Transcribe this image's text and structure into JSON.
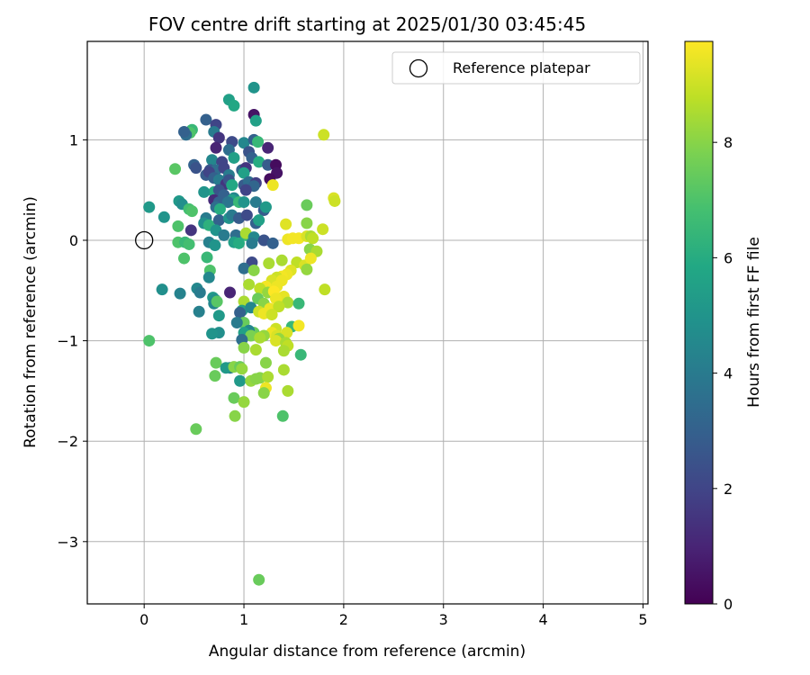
{
  "chart_data": {
    "type": "scatter",
    "title": "FOV centre drift starting at 2025/01/30 03:45:45",
    "xlabel": "Angular distance from reference (arcmin)",
    "ylabel": "Rotation from reference (arcmin)",
    "xlim": [
      -0.57,
      5.05
    ],
    "ylim": [
      -3.62,
      1.98
    ],
    "xticks": [
      0,
      1,
      2,
      3,
      4,
      5
    ],
    "yticks": [
      -3,
      -2,
      -1,
      0,
      1
    ],
    "grid": true,
    "legend": {
      "placement": "top-right",
      "entries": [
        "Reference platepar"
      ]
    },
    "colorbar": {
      "label": "Hours from first FF file",
      "min": 0,
      "max": 9.75,
      "ticks": [
        0,
        2,
        4,
        6,
        8
      ],
      "colormap": "viridis"
    },
    "reference_point": {
      "x": 0.0,
      "y": 0.0,
      "label": "Reference platepar"
    },
    "points": [
      {
        "x": 1.1,
        "y": 1.52,
        "t": 5.0
      },
      {
        "x": 0.85,
        "y": 1.4,
        "t": 5.5
      },
      {
        "x": 0.9,
        "y": 1.34,
        "t": 5.8
      },
      {
        "x": 1.1,
        "y": 1.25,
        "t": 0.5
      },
      {
        "x": 1.12,
        "y": 1.19,
        "t": 5.5
      },
      {
        "x": 0.62,
        "y": 1.2,
        "t": 3.0
      },
      {
        "x": 0.72,
        "y": 1.15,
        "t": 2.0
      },
      {
        "x": 0.48,
        "y": 1.1,
        "t": 6.5
      },
      {
        "x": 0.46,
        "y": 1.07,
        "t": 7.0
      },
      {
        "x": 0.42,
        "y": 1.05,
        "t": 3.5
      },
      {
        "x": 0.4,
        "y": 1.08,
        "t": 3.0
      },
      {
        "x": 0.7,
        "y": 1.08,
        "t": 4.0
      },
      {
        "x": 0.75,
        "y": 1.02,
        "t": 1.5
      },
      {
        "x": 0.88,
        "y": 0.98,
        "t": 2.2
      },
      {
        "x": 1.0,
        "y": 0.97,
        "t": 4.5
      },
      {
        "x": 1.1,
        "y": 1.0,
        "t": 3.0
      },
      {
        "x": 1.14,
        "y": 0.98,
        "t": 6.5
      },
      {
        "x": 1.24,
        "y": 0.92,
        "t": 1.0
      },
      {
        "x": 1.8,
        "y": 1.05,
        "t": 9.0
      },
      {
        "x": 0.72,
        "y": 0.92,
        "t": 1.0
      },
      {
        "x": 0.85,
        "y": 0.9,
        "t": 3.5
      },
      {
        "x": 1.05,
        "y": 0.88,
        "t": 2.5
      },
      {
        "x": 1.08,
        "y": 0.82,
        "t": 3.0
      },
      {
        "x": 0.9,
        "y": 0.82,
        "t": 5.5
      },
      {
        "x": 0.68,
        "y": 0.8,
        "t": 4.5
      },
      {
        "x": 0.78,
        "y": 0.78,
        "t": 2.0
      },
      {
        "x": 1.15,
        "y": 0.78,
        "t": 6.0
      },
      {
        "x": 1.24,
        "y": 0.75,
        "t": 2.8
      },
      {
        "x": 1.32,
        "y": 0.75,
        "t": 0.3
      },
      {
        "x": 0.5,
        "y": 0.75,
        "t": 3.0
      },
      {
        "x": 0.52,
        "y": 0.72,
        "t": 2.5
      },
      {
        "x": 0.31,
        "y": 0.71,
        "t": 7.2
      },
      {
        "x": 0.66,
        "y": 0.7,
        "t": 2.7
      },
      {
        "x": 0.72,
        "y": 0.7,
        "t": 3.5
      },
      {
        "x": 0.8,
        "y": 0.72,
        "t": 2.0
      },
      {
        "x": 0.98,
        "y": 0.7,
        "t": 3.2
      },
      {
        "x": 1.02,
        "y": 0.72,
        "t": 1.5
      },
      {
        "x": 0.62,
        "y": 0.65,
        "t": 2.8
      },
      {
        "x": 0.65,
        "y": 0.68,
        "t": 2.0
      },
      {
        "x": 0.85,
        "y": 0.65,
        "t": 4.0
      },
      {
        "x": 1.0,
        "y": 0.67,
        "t": 5.5
      },
      {
        "x": 1.33,
        "y": 0.67,
        "t": 0.5
      },
      {
        "x": 1.26,
        "y": 0.61,
        "t": 0.3
      },
      {
        "x": 0.7,
        "y": 0.62,
        "t": 3.0
      },
      {
        "x": 0.75,
        "y": 0.6,
        "t": 4.0
      },
      {
        "x": 0.82,
        "y": 0.56,
        "t": 1.5
      },
      {
        "x": 0.85,
        "y": 0.6,
        "t": 2.5
      },
      {
        "x": 0.88,
        "y": 0.55,
        "t": 5.8
      },
      {
        "x": 1.0,
        "y": 0.55,
        "t": 2.8
      },
      {
        "x": 1.05,
        "y": 0.58,
        "t": 3.5
      },
      {
        "x": 1.12,
        "y": 0.57,
        "t": 1.8
      },
      {
        "x": 1.1,
        "y": 0.54,
        "t": 3.2
      },
      {
        "x": 1.29,
        "y": 0.55,
        "t": 9.5
      },
      {
        "x": 1.02,
        "y": 0.5,
        "t": 2.0
      },
      {
        "x": 0.7,
        "y": 0.48,
        "t": 6.0
      },
      {
        "x": 0.6,
        "y": 0.48,
        "t": 5.0
      },
      {
        "x": 0.75,
        "y": 0.5,
        "t": 2.5
      },
      {
        "x": 0.8,
        "y": 0.45,
        "t": 3.0
      },
      {
        "x": 0.9,
        "y": 0.42,
        "t": 4.5
      },
      {
        "x": 0.88,
        "y": 0.4,
        "t": 5.5
      },
      {
        "x": 0.7,
        "y": 0.4,
        "t": 1.2
      },
      {
        "x": 0.75,
        "y": 0.38,
        "t": 3.0
      },
      {
        "x": 0.84,
        "y": 0.38,
        "t": 3.8
      },
      {
        "x": 0.95,
        "y": 0.38,
        "t": 6.5
      },
      {
        "x": 1.0,
        "y": 0.38,
        "t": 5.0
      },
      {
        "x": 1.12,
        "y": 0.38,
        "t": 4.0
      },
      {
        "x": 0.35,
        "y": 0.39,
        "t": 5.2
      },
      {
        "x": 0.38,
        "y": 0.36,
        "t": 4.8
      },
      {
        "x": 0.05,
        "y": 0.33,
        "t": 5.2
      },
      {
        "x": 0.72,
        "y": 0.33,
        "t": 3.5
      },
      {
        "x": 0.76,
        "y": 0.31,
        "t": 6.0
      },
      {
        "x": 0.45,
        "y": 0.31,
        "t": 6.8
      },
      {
        "x": 0.48,
        "y": 0.29,
        "t": 7.0
      },
      {
        "x": 1.2,
        "y": 0.3,
        "t": 2.8
      },
      {
        "x": 1.22,
        "y": 0.33,
        "t": 5.2
      },
      {
        "x": 1.63,
        "y": 0.35,
        "t": 7.5
      },
      {
        "x": 1.9,
        "y": 0.42,
        "t": 9.2
      },
      {
        "x": 1.91,
        "y": 0.39,
        "t": 9.0
      },
      {
        "x": 0.2,
        "y": 0.23,
        "t": 5.0
      },
      {
        "x": 0.62,
        "y": 0.22,
        "t": 4.0
      },
      {
        "x": 0.6,
        "y": 0.17,
        "t": 4.8
      },
      {
        "x": 0.65,
        "y": 0.15,
        "t": 6.2
      },
      {
        "x": 0.75,
        "y": 0.2,
        "t": 3.0
      },
      {
        "x": 0.85,
        "y": 0.22,
        "t": 5.0
      },
      {
        "x": 0.88,
        "y": 0.25,
        "t": 4.0
      },
      {
        "x": 0.95,
        "y": 0.22,
        "t": 2.8
      },
      {
        "x": 1.03,
        "y": 0.25,
        "t": 2.2
      },
      {
        "x": 1.12,
        "y": 0.17,
        "t": 3.0
      },
      {
        "x": 1.15,
        "y": 0.2,
        "t": 5.5
      },
      {
        "x": 1.42,
        "y": 0.16,
        "t": 9.3
      },
      {
        "x": 1.63,
        "y": 0.17,
        "t": 8.0
      },
      {
        "x": 1.79,
        "y": 0.11,
        "t": 9.0
      },
      {
        "x": 0.34,
        "y": 0.14,
        "t": 7.0
      },
      {
        "x": 0.47,
        "y": 0.1,
        "t": 1.5
      },
      {
        "x": 0.72,
        "y": 0.1,
        "t": 5.0
      },
      {
        "x": 0.8,
        "y": 0.05,
        "t": 4.0
      },
      {
        "x": 0.92,
        "y": 0.05,
        "t": 3.5
      },
      {
        "x": 1.02,
        "y": 0.05,
        "t": 6.5
      },
      {
        "x": 1.02,
        "y": 0.07,
        "t": 8.5
      },
      {
        "x": 1.1,
        "y": 0.03,
        "t": 4.5
      },
      {
        "x": 1.2,
        "y": 0.0,
        "t": 2.5
      },
      {
        "x": 1.44,
        "y": 0.01,
        "t": 9.5
      },
      {
        "x": 1.49,
        "y": 0.02,
        "t": 9.6
      },
      {
        "x": 1.55,
        "y": 0.02,
        "t": 9.6
      },
      {
        "x": 1.63,
        "y": 0.04,
        "t": 9.2
      },
      {
        "x": 1.67,
        "y": 0.04,
        "t": 8.5
      },
      {
        "x": 1.69,
        "y": 0.02,
        "t": 8.8
      },
      {
        "x": 0.34,
        "y": -0.02,
        "t": 7.0
      },
      {
        "x": 0.41,
        "y": -0.02,
        "t": 6.5
      },
      {
        "x": 0.45,
        "y": -0.04,
        "t": 6.8
      },
      {
        "x": 0.65,
        "y": -0.02,
        "t": 4.2
      },
      {
        "x": 0.71,
        "y": -0.05,
        "t": 5.0
      },
      {
        "x": 0.9,
        "y": -0.02,
        "t": 5.5
      },
      {
        "x": 0.95,
        "y": -0.03,
        "t": 6.0
      },
      {
        "x": 1.08,
        "y": -0.03,
        "t": 4.0
      },
      {
        "x": 1.29,
        "y": -0.03,
        "t": 3.0
      },
      {
        "x": 1.66,
        "y": -0.09,
        "t": 8.0
      },
      {
        "x": 1.73,
        "y": -0.11,
        "t": 8.5
      },
      {
        "x": 0.63,
        "y": -0.17,
        "t": 6.5
      },
      {
        "x": 0.4,
        "y": -0.18,
        "t": 7.0
      },
      {
        "x": 1.25,
        "y": -0.23,
        "t": 8.5
      },
      {
        "x": 1.38,
        "y": -0.2,
        "t": 8.5
      },
      {
        "x": 1.53,
        "y": -0.22,
        "t": 8.8
      },
      {
        "x": 1.61,
        "y": -0.25,
        "t": 9.2
      },
      {
        "x": 1.67,
        "y": -0.18,
        "t": 9.5
      },
      {
        "x": 1.63,
        "y": -0.29,
        "t": 8.2
      },
      {
        "x": 1.08,
        "y": -0.22,
        "t": 2.2
      },
      {
        "x": 1.0,
        "y": -0.28,
        "t": 3.5
      },
      {
        "x": 1.1,
        "y": -0.3,
        "t": 8.0
      },
      {
        "x": 0.66,
        "y": -0.3,
        "t": 7.0
      },
      {
        "x": 1.47,
        "y": -0.3,
        "t": 9.3
      },
      {
        "x": 1.43,
        "y": -0.34,
        "t": 9.5
      },
      {
        "x": 1.38,
        "y": -0.36,
        "t": 9.6
      },
      {
        "x": 1.33,
        "y": -0.37,
        "t": 9.0
      },
      {
        "x": 1.28,
        "y": -0.4,
        "t": 9.2
      },
      {
        "x": 1.38,
        "y": -0.4,
        "t": 9.5
      },
      {
        "x": 0.65,
        "y": -0.37,
        "t": 4.5
      },
      {
        "x": 1.05,
        "y": -0.44,
        "t": 8.5
      },
      {
        "x": 1.22,
        "y": -0.46,
        "t": 9.6
      },
      {
        "x": 1.33,
        "y": -0.46,
        "t": 9.5
      },
      {
        "x": 1.16,
        "y": -0.48,
        "t": 8.8
      },
      {
        "x": 0.18,
        "y": -0.49,
        "t": 4.8
      },
      {
        "x": 0.53,
        "y": -0.48,
        "t": 4.5
      },
      {
        "x": 0.56,
        "y": -0.52,
        "t": 4.0
      },
      {
        "x": 0.86,
        "y": -0.52,
        "t": 1.0
      },
      {
        "x": 1.24,
        "y": -0.52,
        "t": 8.2
      },
      {
        "x": 1.3,
        "y": -0.51,
        "t": 9.8
      },
      {
        "x": 1.4,
        "y": -0.56,
        "t": 9.4
      },
      {
        "x": 1.81,
        "y": -0.49,
        "t": 8.8
      },
      {
        "x": 0.36,
        "y": -0.53,
        "t": 4.3
      },
      {
        "x": 1.14,
        "y": -0.58,
        "t": 7.5
      },
      {
        "x": 1.32,
        "y": -0.58,
        "t": 9.5
      },
      {
        "x": 1.44,
        "y": -0.62,
        "t": 8.5
      },
      {
        "x": 1.55,
        "y": -0.63,
        "t": 6.5
      },
      {
        "x": 0.69,
        "y": -0.57,
        "t": 5.2
      },
      {
        "x": 0.71,
        "y": -0.59,
        "t": 4.8
      },
      {
        "x": 0.7,
        "y": -0.63,
        "t": 4.5
      },
      {
        "x": 0.73,
        "y": -0.61,
        "t": 7.2
      },
      {
        "x": 1.0,
        "y": -0.61,
        "t": 8.5
      },
      {
        "x": 1.2,
        "y": -0.63,
        "t": 8.0
      },
      {
        "x": 1.26,
        "y": -0.68,
        "t": 9.5
      },
      {
        "x": 1.35,
        "y": -0.66,
        "t": 8.8
      },
      {
        "x": 0.55,
        "y": -0.71,
        "t": 4.2
      },
      {
        "x": 0.75,
        "y": -0.75,
        "t": 5.2
      },
      {
        "x": 0.98,
        "y": -0.7,
        "t": 5.5
      },
      {
        "x": 0.96,
        "y": -0.72,
        "t": 3.0
      },
      {
        "x": 1.07,
        "y": -0.67,
        "t": 4.5
      },
      {
        "x": 1.15,
        "y": -0.71,
        "t": 9.0
      },
      {
        "x": 1.2,
        "y": -0.73,
        "t": 9.5
      },
      {
        "x": 1.28,
        "y": -0.74,
        "t": 9.0
      },
      {
        "x": 1.0,
        "y": -0.82,
        "t": 7.5
      },
      {
        "x": 0.93,
        "y": -0.82,
        "t": 4.0
      },
      {
        "x": 1.48,
        "y": -0.86,
        "t": 6.5
      },
      {
        "x": 1.55,
        "y": -0.85,
        "t": 9.6
      },
      {
        "x": 1.32,
        "y": -0.88,
        "t": 9.0
      },
      {
        "x": 1.28,
        "y": -0.92,
        "t": 9.5
      },
      {
        "x": 1.33,
        "y": -0.95,
        "t": 9.2
      },
      {
        "x": 1.38,
        "y": -0.97,
        "t": 9.0
      },
      {
        "x": 1.2,
        "y": -0.95,
        "t": 8.2
      },
      {
        "x": 1.1,
        "y": -0.92,
        "t": 7.5
      },
      {
        "x": 1.05,
        "y": -0.9,
        "t": 4.5
      },
      {
        "x": 1.0,
        "y": -0.92,
        "t": 5.5
      },
      {
        "x": 0.75,
        "y": -0.92,
        "t": 4.8
      },
      {
        "x": 0.68,
        "y": -0.93,
        "t": 5.0
      },
      {
        "x": 1.43,
        "y": -0.92,
        "t": 9.2
      },
      {
        "x": 1.07,
        "y": -0.95,
        "t": 7.8
      },
      {
        "x": 1.16,
        "y": -0.97,
        "t": 8.5
      },
      {
        "x": 1.35,
        "y": -0.98,
        "t": 8.2
      },
      {
        "x": 1.32,
        "y": -1.0,
        "t": 9.2
      },
      {
        "x": 0.98,
        "y": -0.99,
        "t": 3.5
      },
      {
        "x": 0.05,
        "y": -1.0,
        "t": 7.0
      },
      {
        "x": 1.42,
        "y": -1.02,
        "t": 8.5
      },
      {
        "x": 1.44,
        "y": -1.05,
        "t": 8.8
      },
      {
        "x": 1.0,
        "y": -1.07,
        "t": 8.0
      },
      {
        "x": 1.12,
        "y": -1.09,
        "t": 8.5
      },
      {
        "x": 1.4,
        "y": -1.1,
        "t": 8.5
      },
      {
        "x": 1.57,
        "y": -1.14,
        "t": 6.5
      },
      {
        "x": 1.22,
        "y": -1.22,
        "t": 8.0
      },
      {
        "x": 0.72,
        "y": -1.22,
        "t": 7.5
      },
      {
        "x": 0.86,
        "y": -1.27,
        "t": 4.0
      },
      {
        "x": 0.82,
        "y": -1.27,
        "t": 5.2
      },
      {
        "x": 0.9,
        "y": -1.26,
        "t": 8.0
      },
      {
        "x": 0.96,
        "y": -1.26,
        "t": 7.5
      },
      {
        "x": 0.98,
        "y": -1.28,
        "t": 8.2
      },
      {
        "x": 1.4,
        "y": -1.29,
        "t": 8.5
      },
      {
        "x": 0.71,
        "y": -1.35,
        "t": 7.5
      },
      {
        "x": 1.16,
        "y": -1.37,
        "t": 8.0
      },
      {
        "x": 1.24,
        "y": -1.36,
        "t": 8.5
      },
      {
        "x": 0.96,
        "y": -1.4,
        "t": 5.2
      },
      {
        "x": 1.07,
        "y": -1.4,
        "t": 8.2
      },
      {
        "x": 1.12,
        "y": -1.38,
        "t": 8.0
      },
      {
        "x": 1.22,
        "y": -1.47,
        "t": 9.5
      },
      {
        "x": 1.44,
        "y": -1.5,
        "t": 8.5
      },
      {
        "x": 1.2,
        "y": -1.52,
        "t": 8.0
      },
      {
        "x": 0.9,
        "y": -1.57,
        "t": 7.5
      },
      {
        "x": 1.0,
        "y": -1.61,
        "t": 8.2
      },
      {
        "x": 0.91,
        "y": -1.75,
        "t": 8.0
      },
      {
        "x": 1.39,
        "y": -1.75,
        "t": 7.0
      },
      {
        "x": 0.52,
        "y": -1.88,
        "t": 7.5
      },
      {
        "x": 1.15,
        "y": -3.38,
        "t": 7.5
      }
    ]
  }
}
